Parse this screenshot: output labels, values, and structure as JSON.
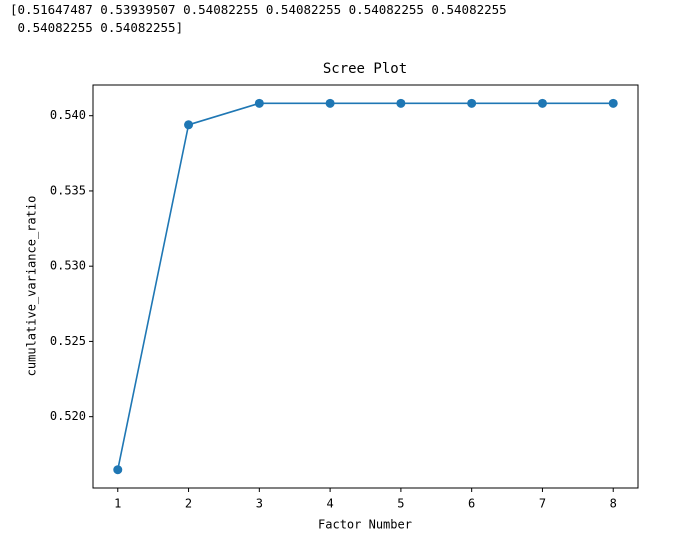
{
  "output_text": [
    "[0.51647487 0.53939507 0.54082255 0.54082255 0.54082255 0.54082255",
    " 0.54082255 0.54082255]"
  ],
  "chart_data": {
    "type": "line",
    "title": "Scree Plot",
    "x_label": "Factor Number",
    "y_label": "cumulative_variance_ratio",
    "x": [
      1,
      2,
      3,
      4,
      5,
      6,
      7,
      8
    ],
    "values": [
      0.51647487,
      0.53939507,
      0.54082255,
      0.54082255,
      0.54082255,
      0.54082255,
      0.54082255,
      0.54082255
    ],
    "color": "#1f77b4",
    "markers": true,
    "xlim": [
      0.65,
      8.35
    ],
    "xticks": [
      1,
      2,
      3,
      4,
      5,
      6,
      7,
      8
    ],
    "ylim": [
      0.51526,
      0.54204
    ],
    "yticks": [
      {
        "value": 0.52,
        "label": "0.520"
      },
      {
        "value": 0.525,
        "label": "0.525"
      },
      {
        "value": 0.53,
        "label": "0.530"
      },
      {
        "value": 0.535,
        "label": "0.535"
      },
      {
        "value": 0.54,
        "label": "0.540"
      }
    ],
    "grid": false
  }
}
